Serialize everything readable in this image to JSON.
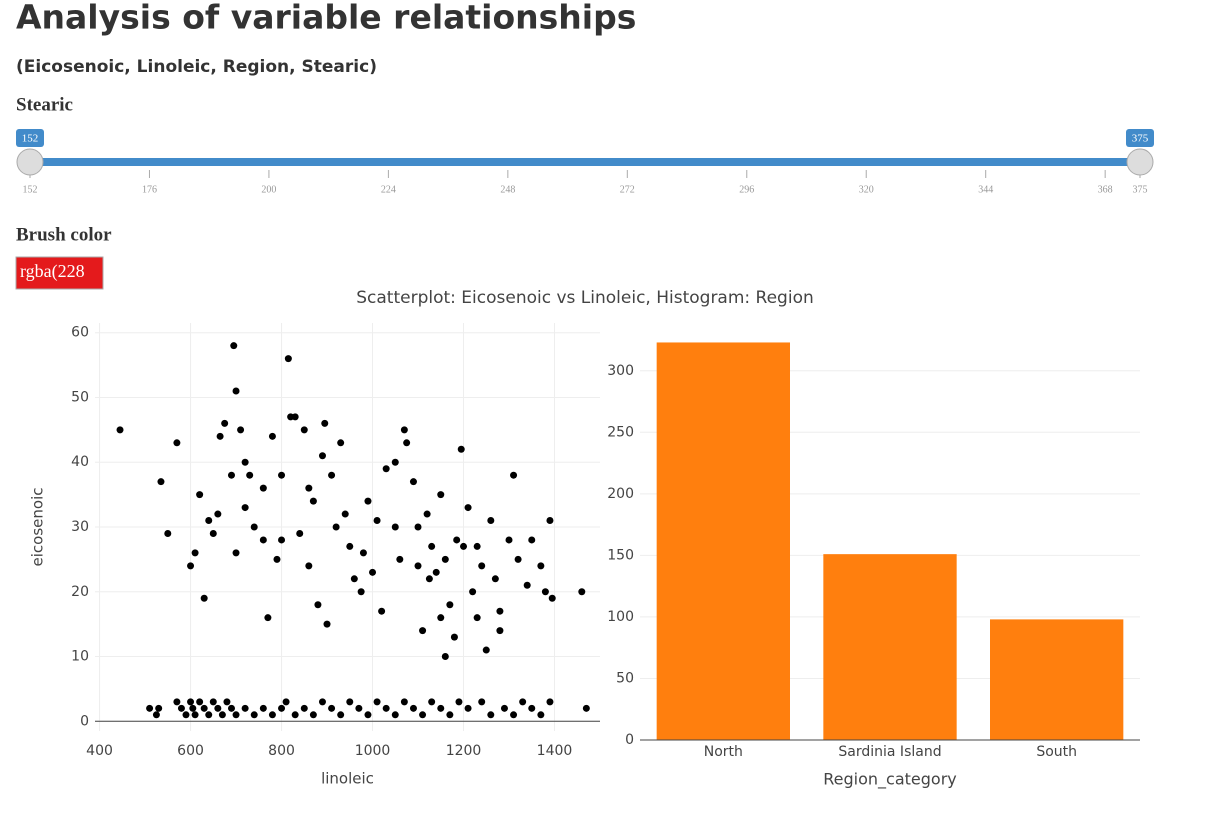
{
  "header": {
    "title": "Analysis of variable relationships",
    "subtitle": "(Eicosenoic, Linoleic, Region, Stearic)"
  },
  "slider": {
    "label": "Stearic",
    "min": 152,
    "max": 375,
    "from": 152,
    "to": 375,
    "color": "#428bca",
    "ticks": [
      152,
      176,
      200,
      224,
      248,
      272,
      296,
      320,
      344,
      368,
      375
    ]
  },
  "brush": {
    "label": "Brush color",
    "value": "rgba(228",
    "color": "#e41a1c"
  },
  "figure_title": "Scatterplot: Eicosenoic vs Linoleic, Histogram: Region",
  "chart_data": [
    {
      "type": "scatter",
      "x_label": "linoleic",
      "y_label": "eicosenoic",
      "color": "#000000",
      "grid": true,
      "xlim": [
        390,
        1500
      ],
      "ylim": [
        -1.5,
        61.5
      ],
      "xticks": [
        400,
        600,
        800,
        1000,
        1200,
        1400
      ],
      "yticks": [
        0,
        10,
        20,
        30,
        40,
        50,
        60
      ],
      "x": [
        510,
        525,
        530,
        570,
        580,
        590,
        600,
        605,
        610,
        620,
        630,
        640,
        650,
        660,
        670,
        680,
        690,
        700,
        720,
        740,
        760,
        780,
        800,
        810,
        830,
        850,
        870,
        890,
        910,
        930,
        950,
        970,
        990,
        1010,
        1030,
        1050,
        1070,
        1090,
        1110,
        1130,
        1150,
        1170,
        1190,
        1210,
        1240,
        1260,
        1290,
        1310,
        1330,
        1350,
        1370,
        1390,
        1470,
        445,
        535,
        550,
        570,
        600,
        610,
        620,
        630,
        640,
        660,
        665,
        675,
        690,
        695,
        700,
        710,
        720,
        730,
        740,
        760,
        770,
        780,
        790,
        800,
        815,
        820,
        830,
        840,
        850,
        860,
        880,
        890,
        895,
        900,
        910,
        920,
        930,
        950,
        960,
        975,
        990,
        1010,
        1020,
        1030,
        1050,
        1060,
        1070,
        1075,
        1090,
        1100,
        1110,
        1120,
        1130,
        1140,
        1150,
        1160,
        1170,
        1180,
        1195,
        1200,
        1210,
        1220,
        1230,
        1240,
        1250,
        1260,
        1270,
        1280,
        1300,
        1310,
        1320,
        1340,
        1350,
        1370,
        1380,
        1390,
        1395,
        1460,
        1185,
        1125,
        1050,
        980,
        860,
        760,
        700,
        650,
        1160,
        1230,
        1280,
        1150,
        1100,
        1000,
        940,
        870,
        800,
        720
      ],
      "values": [
        2,
        1,
        2,
        3,
        2,
        1,
        3,
        2,
        1,
        3,
        2,
        1,
        3,
        2,
        1,
        3,
        2,
        1,
        2,
        1,
        2,
        1,
        2,
        3,
        1,
        2,
        1,
        3,
        2,
        1,
        3,
        2,
        1,
        3,
        2,
        1,
        3,
        2,
        1,
        3,
        2,
        1,
        3,
        2,
        3,
        1,
        2,
        1,
        3,
        2,
        1,
        3,
        2,
        45,
        37,
        29,
        43,
        24,
        26,
        35,
        19,
        31,
        32,
        44,
        46,
        38,
        58,
        51,
        45,
        33,
        38,
        30,
        36,
        16,
        44,
        25,
        28,
        56,
        47,
        47,
        29,
        45,
        36,
        18,
        41,
        46,
        15,
        38,
        30,
        43,
        27,
        22,
        20,
        34,
        31,
        17,
        39,
        40,
        25,
        45,
        43,
        37,
        30,
        14,
        32,
        27,
        23,
        35,
        10,
        18,
        13,
        42,
        27,
        33,
        20,
        16,
        24,
        11,
        31,
        22,
        17,
        28,
        38,
        25,
        21,
        28,
        24,
        20,
        31,
        19,
        20,
        28,
        22,
        30,
        26,
        24,
        28,
        26,
        29,
        25,
        27,
        14,
        16,
        24,
        23,
        32,
        34,
        38,
        40
      ]
    },
    {
      "type": "bar",
      "x_label": "Region_category",
      "color": "#ff7f0e",
      "grid": true,
      "categories": [
        "North",
        "Sardinia Island",
        "South"
      ],
      "values": [
        323,
        151,
        98
      ],
      "ylim": [
        0,
        325
      ],
      "yticks": [
        0,
        50,
        100,
        150,
        200,
        250,
        300
      ]
    }
  ]
}
